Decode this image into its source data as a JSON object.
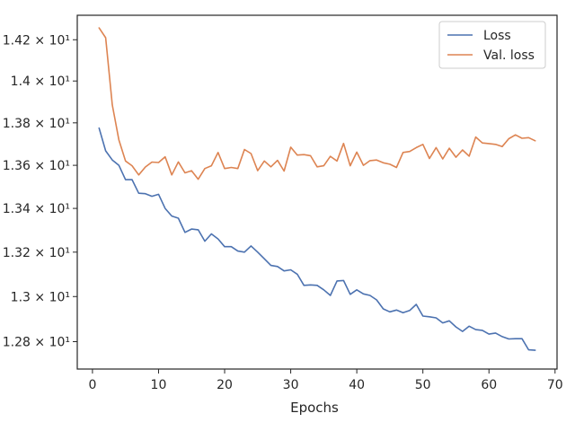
{
  "chart_data": {
    "type": "line",
    "title": "",
    "xlabel": "Epochs",
    "ylabel": "",
    "xlim": [
      -2.3,
      70.3
    ],
    "ylim": [
      12.68,
      14.32
    ],
    "y_scale": "log",
    "x_ticks": [
      0,
      10,
      20,
      30,
      40,
      50,
      60,
      70
    ],
    "x_tick_labels": [
      "0",
      "10",
      "20",
      "30",
      "40",
      "50",
      "60",
      "70"
    ],
    "y_ticks": [
      12.8,
      13.0,
      13.2,
      13.4,
      13.6,
      13.8,
      14.0,
      14.2
    ],
    "y_tick_labels": [
      "1.28 × 10¹",
      "1.3 × 10¹",
      "1.32 × 10¹",
      "1.34 × 10¹",
      "1.36 × 10¹",
      "1.38 × 10¹",
      "1.4 × 10¹",
      "1.42 × 10¹"
    ],
    "grid": false,
    "legend_position": "top-right",
    "x": [
      1,
      2,
      3,
      4,
      5,
      6,
      7,
      8,
      9,
      10,
      11,
      12,
      13,
      14,
      15,
      16,
      17,
      18,
      19,
      20,
      21,
      22,
      23,
      24,
      25,
      26,
      27,
      28,
      29,
      30,
      31,
      32,
      33,
      34,
      35,
      36,
      37,
      38,
      39,
      40,
      41,
      42,
      43,
      44,
      45,
      46,
      47,
      48,
      49,
      50,
      51,
      52,
      53,
      54,
      55,
      56,
      57,
      58,
      59,
      60,
      61,
      62,
      63,
      64,
      65,
      66,
      67
    ],
    "series": [
      {
        "name": "Loss",
        "color": "#4c72b0",
        "values": [
          13.775,
          13.668,
          13.625,
          13.6,
          13.533,
          13.533,
          13.47,
          13.468,
          13.456,
          13.465,
          13.4,
          13.365,
          13.355,
          13.29,
          13.305,
          13.302,
          13.25,
          13.283,
          13.26,
          13.225,
          13.225,
          13.205,
          13.2,
          13.228,
          13.2,
          13.17,
          13.14,
          13.135,
          13.115,
          13.12,
          13.1,
          13.05,
          13.052,
          13.05,
          13.03,
          13.005,
          13.07,
          13.072,
          13.01,
          13.03,
          13.012,
          13.005,
          12.985,
          12.945,
          12.932,
          12.94,
          12.928,
          12.938,
          12.965,
          12.913,
          12.91,
          12.905,
          12.883,
          12.892,
          12.865,
          12.845,
          12.868,
          12.853,
          12.85,
          12.833,
          12.838,
          12.822,
          12.812,
          12.813,
          12.813,
          12.764,
          12.762
        ]
      },
      {
        "name": "Val. loss",
        "color": "#dd8452",
        "values": [
          14.258,
          14.21,
          13.885,
          13.72,
          13.62,
          13.598,
          13.555,
          13.592,
          13.615,
          13.613,
          13.64,
          13.555,
          13.616,
          13.565,
          13.575,
          13.535,
          13.585,
          13.598,
          13.66,
          13.585,
          13.59,
          13.585,
          13.674,
          13.655,
          13.575,
          13.62,
          13.593,
          13.623,
          13.573,
          13.685,
          13.648,
          13.65,
          13.645,
          13.593,
          13.598,
          13.642,
          13.62,
          13.703,
          13.598,
          13.662,
          13.6,
          13.622,
          13.625,
          13.612,
          13.605,
          13.59,
          13.66,
          13.665,
          13.683,
          13.698,
          13.632,
          13.683,
          13.63,
          13.68,
          13.638,
          13.672,
          13.643,
          13.733,
          13.705,
          13.702,
          13.698,
          13.688,
          13.725,
          13.743,
          13.727,
          13.73,
          13.715
        ]
      }
    ]
  }
}
